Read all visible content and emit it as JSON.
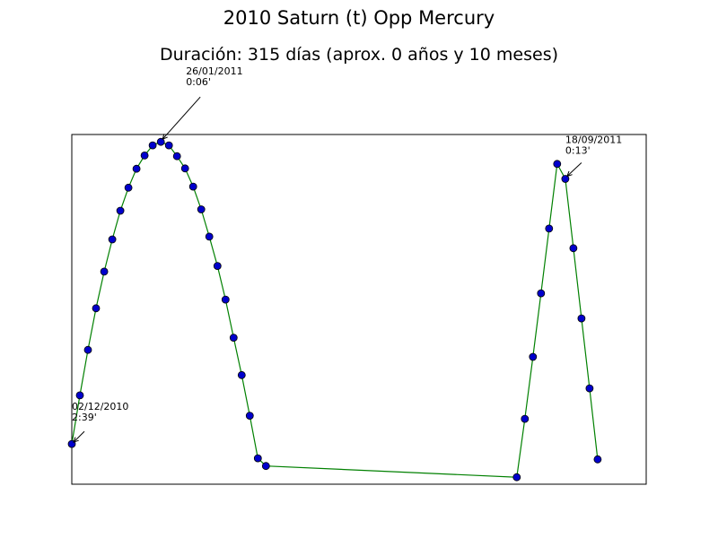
{
  "title": "2010 Saturn (t) Opp Mercury",
  "subtitle": "Duración: 315 días (aprox. 0 años y 10 meses)",
  "chart_data": {
    "type": "line",
    "title": "2010 Saturn (t) Opp Mercury",
    "subtitle": "Duración: 315 días (aprox. 0 años y 10 meses)",
    "xlabel": "",
    "ylabel": "",
    "xlim": [
      0,
      71
    ],
    "ylim": [
      0,
      100
    ],
    "axes_ticks": false,
    "grid": false,
    "line_color": "#008000",
    "marker_face": "#0000cc",
    "marker_edge": "#000000",
    "series": [
      {
        "x": [
          0,
          1,
          2,
          3,
          4,
          5,
          6,
          7,
          8,
          9,
          10,
          11,
          12,
          13,
          14,
          15,
          16,
          17,
          18,
          19,
          20,
          21,
          22,
          23,
          24,
          55,
          56,
          57,
          58,
          59,
          60,
          61,
          62,
          63,
          64,
          65
        ],
        "y": [
          11.5,
          25.4,
          38.4,
          50.3,
          60.8,
          70,
          78.2,
          84.8,
          90.2,
          94,
          96.9,
          97.9,
          96.9,
          93.8,
          90.3,
          85.1,
          78.6,
          70.8,
          62.4,
          52.8,
          41.9,
          31.2,
          19.6,
          7.4,
          5.2,
          2,
          18.7,
          36.4,
          54.6,
          73.1,
          91.6,
          87.3,
          67.5,
          47.4,
          27.4,
          7.1
        ]
      }
    ],
    "annotations": [
      {
        "index": 0,
        "date": "02/12/2010",
        "value": "2:39'"
      },
      {
        "index": 11,
        "date": "26/01/2011",
        "value": "0:06'"
      },
      {
        "index": 31,
        "date": "18/09/2011",
        "value": "0:13'"
      }
    ]
  }
}
